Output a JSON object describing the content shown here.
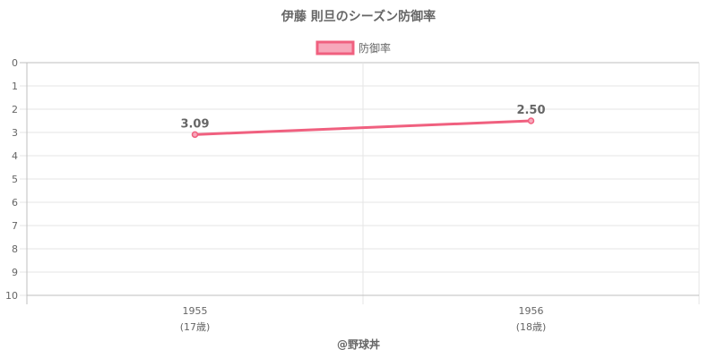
{
  "chart_data": {
    "type": "line",
    "title": "伊藤 則旦のシーズン防御率",
    "x": [
      "1955",
      "1956"
    ],
    "x_sublabels": [
      "(17歳)",
      "(18歳)"
    ],
    "series": [
      {
        "name": "防御率",
        "values": [
          3.09,
          2.5
        ],
        "labels": [
          "3.09",
          "2.50"
        ]
      }
    ],
    "ylim": [
      0,
      10
    ],
    "y_reversed": true,
    "y_ticks": [
      0,
      1,
      2,
      3,
      4,
      5,
      6,
      7,
      8,
      9,
      10
    ],
    "grid": true,
    "legend": "top-center",
    "colors": {
      "line": "#f0607f",
      "fill": "#f7a8bb"
    }
  },
  "credit": "@野球丼"
}
